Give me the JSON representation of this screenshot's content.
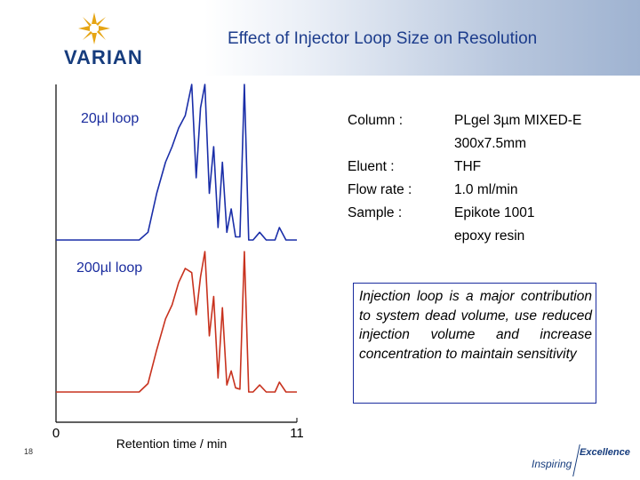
{
  "header": {
    "title": "Effect of Injector Loop Size on Resolution",
    "brand": "VARIAN",
    "brand_color": "#163c7d"
  },
  "chart_data": {
    "type": "line",
    "xlabel": "Retention time / min",
    "xlim": [
      0,
      11
    ],
    "x_ticks": [
      "0",
      "11"
    ],
    "series": [
      {
        "name": "20µl loop",
        "color": "#1a2ea8",
        "x": [
          0.0,
          3.8,
          4.2,
          4.6,
          5.0,
          5.3,
          5.6,
          5.9,
          6.2,
          6.4,
          6.6,
          6.8,
          7.0,
          7.2,
          7.4,
          7.6,
          7.8,
          8.0,
          8.2,
          8.4,
          8.6,
          8.8,
          9.0,
          9.3,
          9.6,
          10.0,
          10.2,
          10.5,
          11.0
        ],
        "y": [
          0.0,
          0.0,
          0.05,
          0.3,
          0.5,
          0.6,
          0.72,
          0.8,
          1.0,
          0.4,
          0.85,
          1.0,
          0.3,
          0.6,
          0.08,
          0.5,
          0.05,
          0.2,
          0.02,
          0.02,
          1.0,
          0.0,
          0.0,
          0.05,
          0.0,
          0.0,
          0.08,
          0.0,
          0.0
        ]
      },
      {
        "name": "200µl loop",
        "color": "#c8321e",
        "x": [
          0.0,
          3.8,
          4.2,
          4.6,
          5.0,
          5.3,
          5.6,
          5.9,
          6.2,
          6.4,
          6.6,
          6.8,
          7.0,
          7.2,
          7.4,
          7.6,
          7.8,
          8.0,
          8.2,
          8.4,
          8.6,
          8.8,
          9.0,
          9.3,
          9.6,
          10.0,
          10.2,
          10.5,
          11.0
        ],
        "y": [
          0.0,
          0.0,
          0.06,
          0.3,
          0.52,
          0.62,
          0.78,
          0.88,
          0.85,
          0.55,
          0.82,
          1.0,
          0.4,
          0.68,
          0.1,
          0.6,
          0.05,
          0.15,
          0.03,
          0.02,
          1.0,
          0.0,
          0.0,
          0.05,
          0.0,
          0.0,
          0.07,
          0.0,
          0.0
        ]
      }
    ]
  },
  "labels": {
    "loop20": "20µl loop",
    "loop200": "200µl loop"
  },
  "conditions": {
    "column_label": "Column :",
    "column_value_1": "PLgel 3µm MIXED-E",
    "column_value_2": "300x7.5mm",
    "eluent_label": "Eluent :",
    "eluent_value": "THF",
    "flow_label": "Flow rate :",
    "flow_value": "1.0 ml/min",
    "sample_label": "Sample :",
    "sample_value_1": "Epikote 1001",
    "sample_value_2": "epoxy resin"
  },
  "callout": {
    "text": "Injection loop is a major contribution to system dead volume, use reduced injection volume and increase concentration to maintain sensitivity"
  },
  "footer": {
    "page_number": "18",
    "tagline_1": "Inspiring",
    "tagline_2": "Excellence"
  }
}
